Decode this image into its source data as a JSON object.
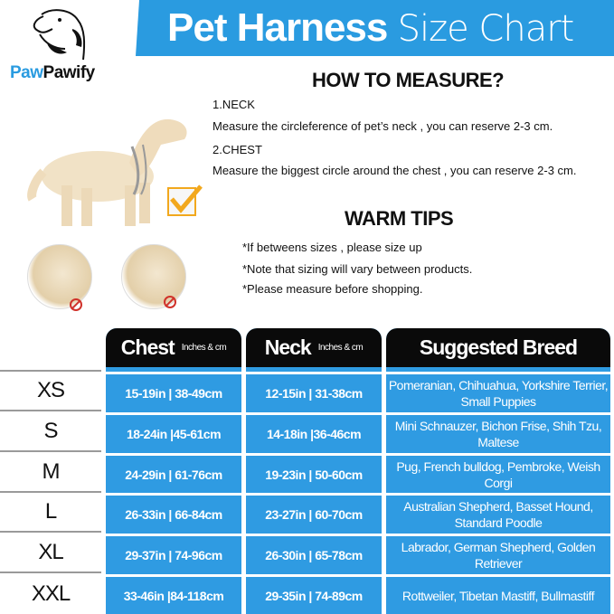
{
  "brand": {
    "name_part1": "Paw",
    "name_part2": "Pawify"
  },
  "banner": {
    "title_bold": "Pet Harness",
    "title_light": "Size Chart",
    "color": "#2a9be0"
  },
  "measure": {
    "heading": "HOW TO MEASURE?",
    "items": [
      {
        "label": "1.NECK",
        "text": "Measure the circleference of pet’s neck , you can reserve 2-3 cm."
      },
      {
        "label": "2.CHEST",
        "text": "Measure the biggest circle around the chest , you can reserve 2-3 cm."
      }
    ]
  },
  "tips": {
    "heading": "WARM TIPS",
    "items": [
      "*If betweens sizes , please size up",
      "*Note that sizing will vary between products.",
      "*Please measure before shopping."
    ]
  },
  "table": {
    "headers": {
      "chest": "Chest",
      "chest_unit": "Inches & cm",
      "neck": "Neck",
      "neck_unit": "Inches & cm",
      "breed": "Suggested Breed"
    },
    "rows": [
      {
        "size": "XS",
        "chest": "15-19in | 38-49cm",
        "neck": "12-15in | 31-38cm",
        "breed": "Pomeranian,  Chihuahua, Yorkshire Terrier,  Small Puppies"
      },
      {
        "size": "S",
        "chest": "18-24in |45-61cm",
        "neck": "14-18in |36-46cm",
        "breed": "Mini Schnauzer,  Bichon Frise, Shih Tzu,  Maltese"
      },
      {
        "size": "M",
        "chest": "24-29in | 61-76cm",
        "neck": "19-23in | 50-60cm",
        "breed": "Pug,  French bulldog,  Pembroke, Weish Corgi"
      },
      {
        "size": "L",
        "chest": "26-33in | 66-84cm",
        "neck": "23-27in | 60-70cm",
        "breed": "Australian Shepherd,  Basset Hound,  Standard Poodle"
      },
      {
        "size": "XL",
        "chest": "29-37in | 74-96cm",
        "neck": "26-30in | 65-78cm",
        "breed": "Labrador,  German Shepherd, Golden Retriever"
      },
      {
        "size": "XXL",
        "chest": "33-46in |84-118cm",
        "neck": "29-35in | 74-89cm",
        "breed": "Rottweiler,  Tibetan Mastiff, Bullmastiff"
      }
    ]
  },
  "colors": {
    "table_blue": "#2f9be2",
    "header_black": "#0a0a0a",
    "check_orange": "#f2a81d",
    "no_red": "#d0322a"
  }
}
